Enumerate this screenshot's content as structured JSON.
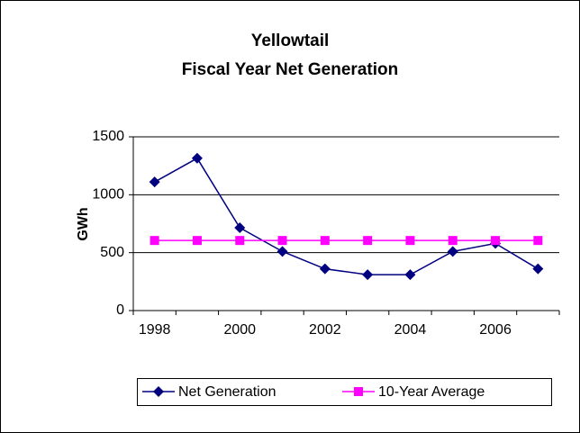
{
  "chart_data": {
    "type": "line",
    "title": [
      "Yellowtail",
      "Fiscal Year Net Generation"
    ],
    "y_label": "GWh",
    "categories": [
      "1998",
      null,
      "2000",
      null,
      "2002",
      null,
      "2004",
      null,
      "2006",
      null
    ],
    "series": [
      {
        "name": "Net Generation",
        "color": "#000080",
        "marker": "diamond",
        "values": [
          1110,
          1315,
          715,
          510,
          360,
          310,
          310,
          510,
          580,
          360
        ]
      },
      {
        "name": "10-Year Average",
        "color": "#ff00ff",
        "marker": "square",
        "values": [
          605,
          605,
          605,
          605,
          605,
          605,
          605,
          605,
          605,
          605
        ]
      }
    ],
    "ylim": [
      0,
      1500
    ],
    "yticks": [
      0,
      500,
      1000,
      1500
    ],
    "grid": true,
    "legend": "bottom"
  }
}
